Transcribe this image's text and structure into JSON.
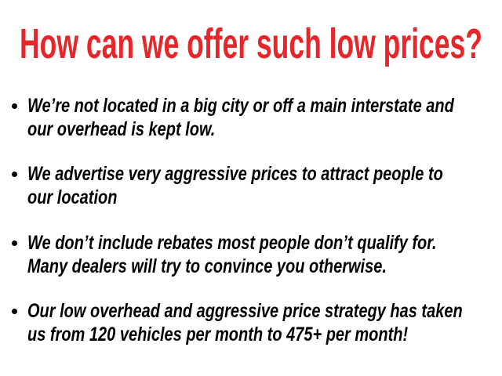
{
  "title": "How can we offer such low prices?",
  "colors": {
    "title": "#e8262a",
    "body": "#000000"
  },
  "bullets": [
    {
      "lines": [
        "We’re not located in a big city or off a main interstate and",
        "our overhead is kept low."
      ]
    },
    {
      "lines": [
        "We advertise very aggressive prices to attract people to",
        "our location"
      ]
    },
    {
      "lines": [
        "We don’t include rebates most people don’t qualify for.",
        "Many dealers will try to convince you otherwise."
      ]
    },
    {
      "lines": [
        "Our low overhead and aggressive price strategy has taken",
        "us from 120 vehicles per month to 475+ per month!"
      ]
    }
  ]
}
